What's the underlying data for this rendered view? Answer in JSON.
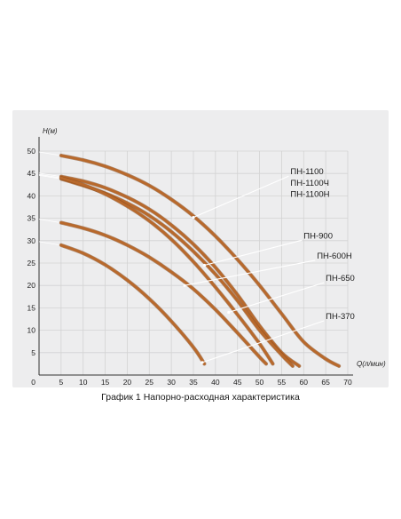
{
  "caption": "График 1 Напорно-расходная характеристика",
  "chart_data": {
    "type": "line",
    "title": "",
    "xlabel": "Q(л/мин)",
    "ylabel": "H(м)",
    "xlim": [
      0,
      70
    ],
    "ylim": [
      0,
      50
    ],
    "origin_label": "0",
    "x_ticks": [
      "5",
      "10",
      "15",
      "20",
      "25",
      "30",
      "35",
      "40",
      "45",
      "50",
      "55",
      "60",
      "65",
      "70"
    ],
    "y_ticks": [
      "5",
      "10",
      "15",
      "20",
      "25",
      "30",
      "35",
      "40",
      "45",
      "50"
    ],
    "grid": true,
    "curve_color": "#b8692c",
    "series": [
      {
        "curve_for": "ПН-1100",
        "x": [
          5,
          10,
          15,
          20,
          25,
          30,
          35,
          40,
          45,
          50,
          55,
          60,
          65,
          68
        ],
        "y": [
          49,
          48,
          46.6,
          44.7,
          42.3,
          39.2,
          35.5,
          31,
          25.8,
          20,
          13.7,
          7.4,
          3.6,
          2
        ]
      },
      {
        "curve_for": "ПН-1100Ч",
        "x": [
          5,
          10,
          15,
          20,
          25,
          30,
          35,
          40,
          45,
          50,
          55,
          59
        ],
        "y": [
          44.3,
          43.3,
          41.8,
          39.7,
          37,
          33.5,
          29.2,
          24,
          17.9,
          11,
          5,
          2
        ]
      },
      {
        "curve_for": "ПН-1100Н",
        "x": [
          5,
          10,
          15,
          20,
          25,
          30,
          35,
          40,
          45,
          50,
          55,
          57.5
        ],
        "y": [
          43.8,
          42.3,
          40.6,
          38.4,
          35.6,
          32,
          27.6,
          22.5,
          16.6,
          10,
          4.5,
          2
        ]
      },
      {
        "curve_for": "ПН-900",
        "x": [
          5,
          10,
          15,
          20,
          25,
          30,
          35,
          40,
          45,
          50,
          53
        ],
        "y": [
          44,
          42.5,
          40.4,
          37.7,
          34.4,
          30.3,
          25.3,
          19.6,
          13.5,
          7,
          2.5
        ]
      },
      {
        "curve_for": "ПН-600Н",
        "x": [
          5,
          10,
          15,
          20,
          25,
          30,
          35,
          40,
          45,
          50,
          51.5
        ],
        "y": [
          34,
          32.8,
          31.2,
          29,
          26.3,
          23,
          19.2,
          14.6,
          9.4,
          4,
          2.5
        ]
      },
      {
        "curve_for": "ПН-370",
        "x": [
          5,
          10,
          15,
          20,
          25,
          30,
          35,
          37.5
        ],
        "y": [
          29,
          27.2,
          24.6,
          21.2,
          17,
          12,
          6.2,
          2.5
        ]
      }
    ],
    "labels": [
      {
        "text": "ПН-1100",
        "x": 57,
        "y": 44.8,
        "points_to": [
          35,
          35.2
        ]
      },
      {
        "text": "ПН-1100Ч",
        "x": 57,
        "y": 42.3,
        "points_to": [
          35,
          35.2
        ]
      },
      {
        "text": "ПН-1100Н",
        "x": 57,
        "y": 39.8,
        "points_to": [
          35,
          35.2
        ]
      },
      {
        "text": "ПН-900",
        "x": 60,
        "y": 30.5,
        "points_to": [
          37.5,
          24.5
        ]
      },
      {
        "text": "ПН-600Н",
        "x": 63,
        "y": 26,
        "points_to": [
          33,
          20
        ]
      },
      {
        "text": "ПН-650",
        "x": 65,
        "y": 21,
        "points_to": [
          43,
          14
        ]
      },
      {
        "text": "ПН-370",
        "x": 65,
        "y": 12.5,
        "points_to": [
          37,
          2.8
        ]
      }
    ]
  }
}
